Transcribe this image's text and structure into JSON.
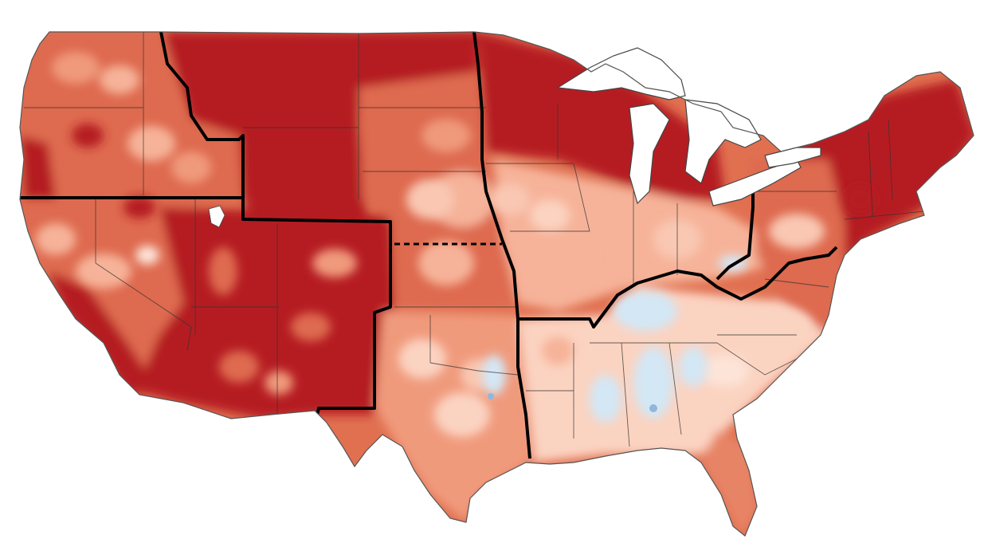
{
  "map": {
    "type": "choropleth-contour",
    "subject": "contiguous-united-states",
    "legend": null,
    "colors": {
      "background": "#ffffff",
      "water": "#ffffff",
      "darkest_red": "#b51c22",
      "dark_red": "#c93a2e",
      "medium_red": "#de6b4f",
      "light_red": "#f09a7c",
      "pale_salmon": "#f9c7b2",
      "very_pale": "#fde4d8",
      "light_blue": "#d3e7f5",
      "blue_dot": "#8fb7dc",
      "state_line": "#333333",
      "region_line": "#000000"
    },
    "regions": [
      {
        "name": "pacific-northwest-west",
        "shade": "medium_red"
      },
      {
        "name": "southwest",
        "shade": "darkest_red"
      },
      {
        "name": "northern-rockies-plains",
        "shade": "darkest_red"
      },
      {
        "name": "south",
        "shade": "light_red"
      },
      {
        "name": "upper-midwest",
        "shade": "dark_red"
      },
      {
        "name": "ohio-valley",
        "shade": "pale_salmon"
      },
      {
        "name": "southeast",
        "shade": "very_pale"
      },
      {
        "name": "northeast",
        "shade": "darkest_red"
      }
    ]
  }
}
